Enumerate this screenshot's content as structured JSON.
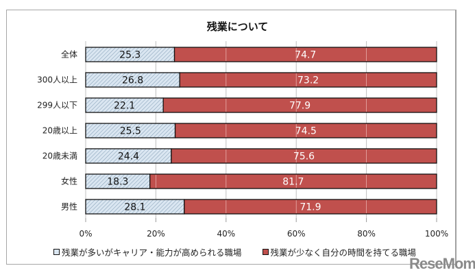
{
  "chart_data": {
    "type": "bar",
    "orientation": "horizontal",
    "stacked": "percent",
    "title": "残業について",
    "categories": [
      "全体",
      "300人以上",
      "299人以下",
      "20歳以上",
      "20歳未満",
      "女性",
      "男性"
    ],
    "series": [
      {
        "name": "残業が多いがキャリア・能力が高められる職場",
        "values": [
          25.3,
          26.8,
          22.1,
          25.5,
          24.4,
          18.3,
          28.1
        ],
        "color": "#dae6f1",
        "pattern": "diagonal-hatch"
      },
      {
        "name": "残業が少なく自分の時間を持てる職場",
        "values": [
          74.7,
          73.2,
          77.9,
          74.5,
          75.6,
          81.7,
          71.9
        ],
        "color": "#c0504d"
      }
    ],
    "xlim": [
      0,
      100
    ],
    "x_ticks": [
      "0%",
      "20%",
      "40%",
      "60%",
      "80%",
      "100%"
    ],
    "xlabel": "",
    "ylabel": "",
    "grid": true,
    "legend_position": "bottom"
  },
  "watermark": "ReseMom"
}
